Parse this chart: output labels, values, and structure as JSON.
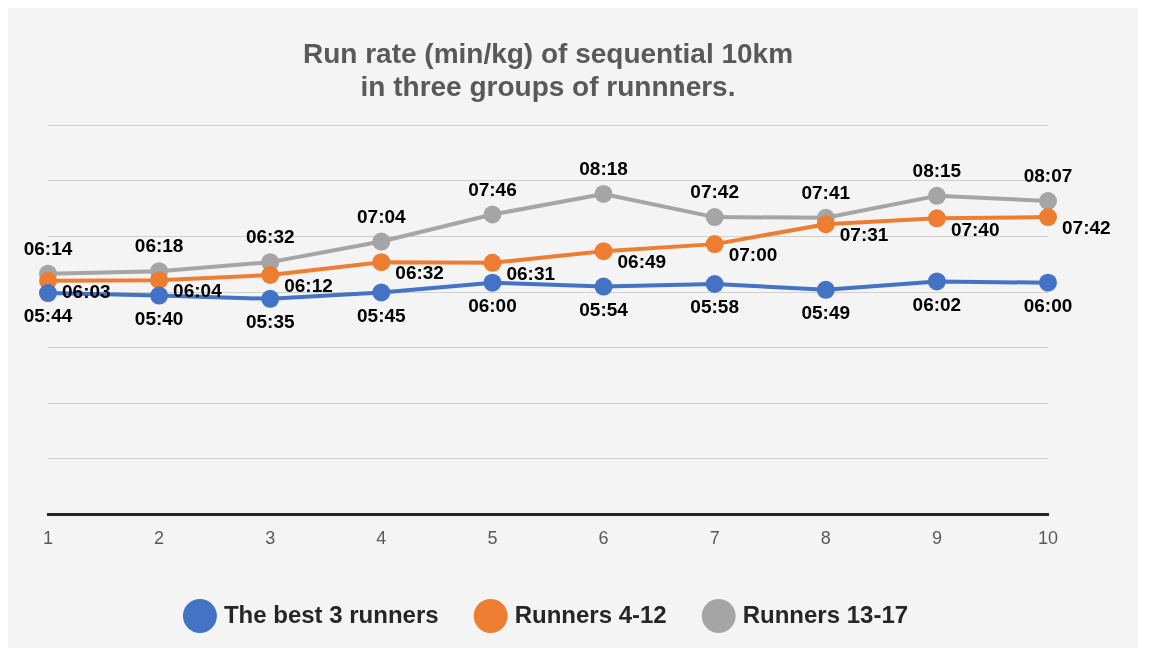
{
  "chart_data": {
    "type": "line",
    "title": "Run rate (min/kg) of sequential 10km\nin three groups of runnners.",
    "categories": [
      "1",
      "2",
      "3",
      "4",
      "5",
      "6",
      "7",
      "8",
      "9",
      "10"
    ],
    "ylim": [
      0,
      10.08
    ],
    "yticks": [
      {
        "value": 0,
        "label": null
      },
      {
        "value": 1.44,
        "label": null
      },
      {
        "value": 2.88,
        "label": null
      },
      {
        "value": 4.32,
        "label": null
      },
      {
        "value": 5.76,
        "label": null
      },
      {
        "value": 7.2,
        "label": null
      },
      {
        "value": 8.64,
        "label": null
      },
      {
        "value": 10.08,
        "label": null
      }
    ],
    "tick_labels": "x",
    "grid": "y",
    "legend": "bottom",
    "marker": "circle",
    "line_style": "solid",
    "series": [
      {
        "name": "The best 3 runners",
        "color": "#4472c4",
        "values": [
          5.733,
          5.667,
          5.583,
          5.75,
          6.0,
          5.9,
          5.967,
          5.817,
          6.033,
          6.0
        ],
        "value_labels": [
          "05:44",
          "05:40",
          "05:35",
          "05:45",
          "06:00",
          "05:54",
          "05:58",
          "05:49",
          "06:02",
          "06:00"
        ]
      },
      {
        "name": "Runners 4-12",
        "color": "#ed7d31",
        "values": [
          6.05,
          6.067,
          6.2,
          6.533,
          6.517,
          6.817,
          7.0,
          7.517,
          7.667,
          7.7
        ],
        "value_labels": [
          "06:03",
          "06:04",
          "06:12",
          "06:32",
          "06:31",
          "06:49",
          "07:00",
          "07:31",
          "07:40",
          "07:42"
        ]
      },
      {
        "name": "Runners 13-17",
        "color": "#a5a5a5",
        "values": [
          6.233,
          6.3,
          6.533,
          7.067,
          7.767,
          8.3,
          7.7,
          7.683,
          8.25,
          8.117
        ],
        "value_labels": [
          "06:14",
          "06:18",
          "06:32",
          "07:04",
          "07:46",
          "08:18",
          "07:42",
          "07:41",
          "08:15",
          "08:07"
        ]
      }
    ]
  }
}
